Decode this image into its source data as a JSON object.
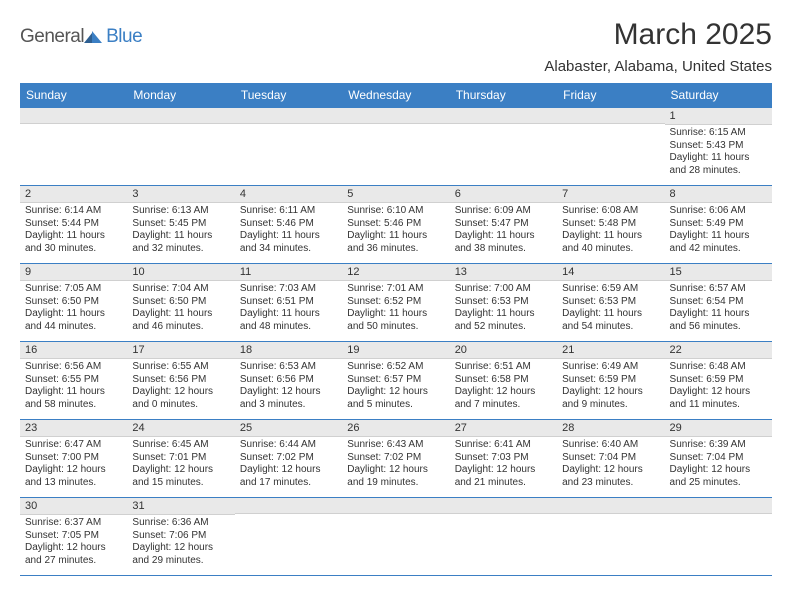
{
  "logo": {
    "general": "General",
    "blue": "Blue"
  },
  "title": "March 2025",
  "location": "Alabaster, Alabama, United States",
  "colors": {
    "header_bg": "#3b7fc4",
    "header_fg": "#ffffff",
    "daynum_bg": "#e9e9e9",
    "border": "#3b7fc4",
    "text": "#333333",
    "page_bg": "#ffffff"
  },
  "weekdays": [
    "Sunday",
    "Monday",
    "Tuesday",
    "Wednesday",
    "Thursday",
    "Friday",
    "Saturday"
  ],
  "weeks": [
    [
      {
        "n": "",
        "lines": []
      },
      {
        "n": "",
        "lines": []
      },
      {
        "n": "",
        "lines": []
      },
      {
        "n": "",
        "lines": []
      },
      {
        "n": "",
        "lines": []
      },
      {
        "n": "",
        "lines": []
      },
      {
        "n": "1",
        "lines": [
          "Sunrise: 6:15 AM",
          "Sunset: 5:43 PM",
          "Daylight: 11 hours",
          "and 28 minutes."
        ]
      }
    ],
    [
      {
        "n": "2",
        "lines": [
          "Sunrise: 6:14 AM",
          "Sunset: 5:44 PM",
          "Daylight: 11 hours",
          "and 30 minutes."
        ]
      },
      {
        "n": "3",
        "lines": [
          "Sunrise: 6:13 AM",
          "Sunset: 5:45 PM",
          "Daylight: 11 hours",
          "and 32 minutes."
        ]
      },
      {
        "n": "4",
        "lines": [
          "Sunrise: 6:11 AM",
          "Sunset: 5:46 PM",
          "Daylight: 11 hours",
          "and 34 minutes."
        ]
      },
      {
        "n": "5",
        "lines": [
          "Sunrise: 6:10 AM",
          "Sunset: 5:46 PM",
          "Daylight: 11 hours",
          "and 36 minutes."
        ]
      },
      {
        "n": "6",
        "lines": [
          "Sunrise: 6:09 AM",
          "Sunset: 5:47 PM",
          "Daylight: 11 hours",
          "and 38 minutes."
        ]
      },
      {
        "n": "7",
        "lines": [
          "Sunrise: 6:08 AM",
          "Sunset: 5:48 PM",
          "Daylight: 11 hours",
          "and 40 minutes."
        ]
      },
      {
        "n": "8",
        "lines": [
          "Sunrise: 6:06 AM",
          "Sunset: 5:49 PM",
          "Daylight: 11 hours",
          "and 42 minutes."
        ]
      }
    ],
    [
      {
        "n": "9",
        "lines": [
          "Sunrise: 7:05 AM",
          "Sunset: 6:50 PM",
          "Daylight: 11 hours",
          "and 44 minutes."
        ]
      },
      {
        "n": "10",
        "lines": [
          "Sunrise: 7:04 AM",
          "Sunset: 6:50 PM",
          "Daylight: 11 hours",
          "and 46 minutes."
        ]
      },
      {
        "n": "11",
        "lines": [
          "Sunrise: 7:03 AM",
          "Sunset: 6:51 PM",
          "Daylight: 11 hours",
          "and 48 minutes."
        ]
      },
      {
        "n": "12",
        "lines": [
          "Sunrise: 7:01 AM",
          "Sunset: 6:52 PM",
          "Daylight: 11 hours",
          "and 50 minutes."
        ]
      },
      {
        "n": "13",
        "lines": [
          "Sunrise: 7:00 AM",
          "Sunset: 6:53 PM",
          "Daylight: 11 hours",
          "and 52 minutes."
        ]
      },
      {
        "n": "14",
        "lines": [
          "Sunrise: 6:59 AM",
          "Sunset: 6:53 PM",
          "Daylight: 11 hours",
          "and 54 minutes."
        ]
      },
      {
        "n": "15",
        "lines": [
          "Sunrise: 6:57 AM",
          "Sunset: 6:54 PM",
          "Daylight: 11 hours",
          "and 56 minutes."
        ]
      }
    ],
    [
      {
        "n": "16",
        "lines": [
          "Sunrise: 6:56 AM",
          "Sunset: 6:55 PM",
          "Daylight: 11 hours",
          "and 58 minutes."
        ]
      },
      {
        "n": "17",
        "lines": [
          "Sunrise: 6:55 AM",
          "Sunset: 6:56 PM",
          "Daylight: 12 hours",
          "and 0 minutes."
        ]
      },
      {
        "n": "18",
        "lines": [
          "Sunrise: 6:53 AM",
          "Sunset: 6:56 PM",
          "Daylight: 12 hours",
          "and 3 minutes."
        ]
      },
      {
        "n": "19",
        "lines": [
          "Sunrise: 6:52 AM",
          "Sunset: 6:57 PM",
          "Daylight: 12 hours",
          "and 5 minutes."
        ]
      },
      {
        "n": "20",
        "lines": [
          "Sunrise: 6:51 AM",
          "Sunset: 6:58 PM",
          "Daylight: 12 hours",
          "and 7 minutes."
        ]
      },
      {
        "n": "21",
        "lines": [
          "Sunrise: 6:49 AM",
          "Sunset: 6:59 PM",
          "Daylight: 12 hours",
          "and 9 minutes."
        ]
      },
      {
        "n": "22",
        "lines": [
          "Sunrise: 6:48 AM",
          "Sunset: 6:59 PM",
          "Daylight: 12 hours",
          "and 11 minutes."
        ]
      }
    ],
    [
      {
        "n": "23",
        "lines": [
          "Sunrise: 6:47 AM",
          "Sunset: 7:00 PM",
          "Daylight: 12 hours",
          "and 13 minutes."
        ]
      },
      {
        "n": "24",
        "lines": [
          "Sunrise: 6:45 AM",
          "Sunset: 7:01 PM",
          "Daylight: 12 hours",
          "and 15 minutes."
        ]
      },
      {
        "n": "25",
        "lines": [
          "Sunrise: 6:44 AM",
          "Sunset: 7:02 PM",
          "Daylight: 12 hours",
          "and 17 minutes."
        ]
      },
      {
        "n": "26",
        "lines": [
          "Sunrise: 6:43 AM",
          "Sunset: 7:02 PM",
          "Daylight: 12 hours",
          "and 19 minutes."
        ]
      },
      {
        "n": "27",
        "lines": [
          "Sunrise: 6:41 AM",
          "Sunset: 7:03 PM",
          "Daylight: 12 hours",
          "and 21 minutes."
        ]
      },
      {
        "n": "28",
        "lines": [
          "Sunrise: 6:40 AM",
          "Sunset: 7:04 PM",
          "Daylight: 12 hours",
          "and 23 minutes."
        ]
      },
      {
        "n": "29",
        "lines": [
          "Sunrise: 6:39 AM",
          "Sunset: 7:04 PM",
          "Daylight: 12 hours",
          "and 25 minutes."
        ]
      }
    ],
    [
      {
        "n": "30",
        "lines": [
          "Sunrise: 6:37 AM",
          "Sunset: 7:05 PM",
          "Daylight: 12 hours",
          "and 27 minutes."
        ]
      },
      {
        "n": "31",
        "lines": [
          "Sunrise: 6:36 AM",
          "Sunset: 7:06 PM",
          "Daylight: 12 hours",
          "and 29 minutes."
        ]
      },
      {
        "n": "",
        "lines": []
      },
      {
        "n": "",
        "lines": []
      },
      {
        "n": "",
        "lines": []
      },
      {
        "n": "",
        "lines": []
      },
      {
        "n": "",
        "lines": []
      }
    ]
  ]
}
